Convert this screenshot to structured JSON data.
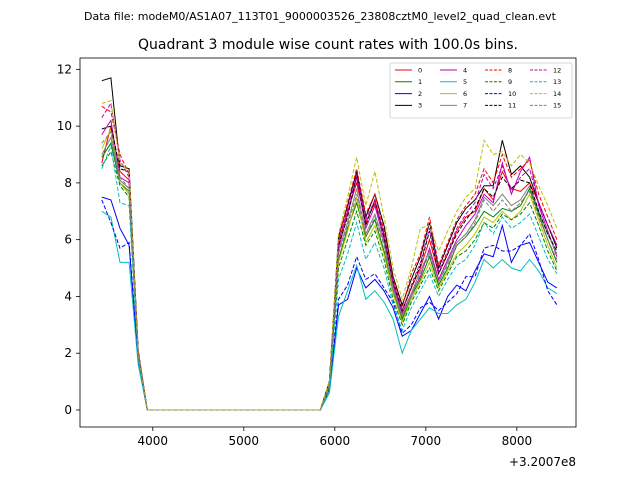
{
  "suptitle": "Data file: modeM0/AS1A07_113T01_9000003526_23808cztM0_level2_quad_clean.evt",
  "chart_data": {
    "type": "line",
    "title": "Quadrant 3 module wise count rates with 100.0s bins.",
    "xlabel": "",
    "ylabel": "",
    "x_offset_label": "+3.2007e8",
    "xlim": [
      3200,
      8650
    ],
    "ylim": [
      -0.6,
      12.4
    ],
    "xticks": [
      4000,
      5000,
      6000,
      7000,
      8000
    ],
    "yticks": [
      0,
      2,
      4,
      6,
      8,
      10,
      12
    ],
    "grid": false,
    "legend": {
      "placement": "top-right",
      "ncol": 4
    },
    "x": [
      3440,
      3540,
      3640,
      3740,
      3840,
      3940,
      4040,
      4140,
      4240,
      4340,
      4440,
      4540,
      4640,
      4740,
      4840,
      4940,
      5040,
      5140,
      5240,
      5340,
      5440,
      5540,
      5640,
      5740,
      5840,
      5940,
      6040,
      6140,
      6240,
      6340,
      6440,
      6540,
      6640,
      6740,
      6840,
      6940,
      7040,
      7140,
      7240,
      7340,
      7440,
      7540,
      7640,
      7740,
      7840,
      7940,
      8040,
      8140,
      8240,
      8340,
      8440
    ],
    "series": [
      {
        "name": "0",
        "color": "#ff0000",
        "dash": false,
        "values": [
          8.7,
          10.0,
          8.4,
          8.1,
          2.0,
          0.0,
          0,
          0,
          0,
          0,
          0,
          0,
          0,
          0,
          0,
          0,
          0,
          0,
          0,
          0,
          0,
          0,
          0,
          0,
          0,
          0.9,
          5.9,
          7.0,
          8.0,
          6.6,
          7.3,
          6.2,
          4.5,
          3.5,
          4.3,
          5.0,
          6.0,
          4.8,
          5.5,
          6.3,
          6.8,
          7.0,
          7.8,
          7.4,
          8.4,
          7.8,
          7.7,
          8.0,
          7.3,
          6.5,
          5.8
        ]
      },
      {
        "name": "1",
        "color": "#008000",
        "dash": false,
        "values": [
          8.9,
          9.4,
          8.0,
          7.7,
          1.9,
          0.0,
          0,
          0,
          0,
          0,
          0,
          0,
          0,
          0,
          0,
          0,
          0,
          0,
          0,
          0,
          0,
          0,
          0,
          0,
          0,
          0.8,
          5.3,
          6.4,
          7.3,
          6.1,
          6.7,
          5.6,
          4.2,
          3.2,
          4.0,
          4.6,
          5.4,
          4.4,
          5.0,
          5.8,
          6.1,
          6.5,
          7.0,
          6.8,
          7.1,
          7.0,
          7.2,
          7.8,
          6.9,
          6.0,
          5.2
        ]
      },
      {
        "name": "2",
        "color": "#0000ff",
        "dash": false,
        "values": [
          7.5,
          7.4,
          6.4,
          5.8,
          1.7,
          0.0,
          0,
          0,
          0,
          0,
          0,
          0,
          0,
          0,
          0,
          0,
          0,
          0,
          0,
          0,
          0,
          0,
          0,
          0,
          0,
          0.7,
          3.7,
          3.9,
          5.0,
          4.3,
          4.6,
          4.2,
          3.6,
          2.6,
          2.8,
          3.4,
          4.0,
          3.2,
          4.0,
          4.4,
          4.2,
          4.9,
          5.5,
          5.4,
          6.5,
          5.2,
          5.8,
          5.9,
          5.2,
          4.5,
          4.3
        ]
      },
      {
        "name": "3",
        "color": "#000000",
        "dash": false,
        "values": [
          11.6,
          11.7,
          8.6,
          8.5,
          2.1,
          0.0,
          0,
          0,
          0,
          0,
          0,
          0,
          0,
          0,
          0,
          0,
          0,
          0,
          0,
          0,
          0,
          0,
          0,
          0,
          0,
          1.0,
          6.1,
          7.2,
          8.4,
          6.8,
          7.6,
          6.5,
          4.7,
          3.7,
          4.6,
          5.4,
          6.6,
          5.0,
          5.8,
          6.6,
          7.1,
          7.4,
          7.9,
          7.9,
          9.5,
          8.3,
          8.6,
          8.2,
          7.3,
          6.5,
          5.7
        ]
      },
      {
        "name": "4",
        "color": "#bf00bf",
        "dash": false,
        "values": [
          9.7,
          10.2,
          8.2,
          8.0,
          1.9,
          0.0,
          0,
          0,
          0,
          0,
          0,
          0,
          0,
          0,
          0,
          0,
          0,
          0,
          0,
          0,
          0,
          0,
          0,
          0,
          0,
          0.9,
          5.7,
          6.9,
          8.2,
          6.4,
          7.2,
          6.0,
          4.4,
          3.4,
          4.1,
          4.7,
          5.7,
          4.6,
          5.3,
          6.0,
          6.5,
          6.9,
          7.6,
          7.3,
          8.7,
          7.6,
          8.4,
          8.9,
          7.2,
          6.3,
          5.4
        ]
      },
      {
        "name": "5",
        "color": "#00bfbf",
        "dash": false,
        "values": [
          7.0,
          6.8,
          5.2,
          5.2,
          1.6,
          0.0,
          0,
          0,
          0,
          0,
          0,
          0,
          0,
          0,
          0,
          0,
          0,
          0,
          0,
          0,
          0,
          0,
          0,
          0,
          0,
          0.6,
          3.3,
          4.2,
          5.1,
          3.9,
          4.2,
          3.8,
          3.2,
          2.0,
          2.8,
          3.2,
          3.6,
          3.4,
          3.4,
          3.7,
          3.9,
          4.5,
          5.3,
          5.0,
          5.3,
          5.0,
          4.9,
          5.3,
          4.9,
          4.3,
          4.1
        ]
      },
      {
        "name": "6",
        "color": "#bfbf00",
        "dash": false,
        "values": [
          9.2,
          9.9,
          8.0,
          7.6,
          1.9,
          0.0,
          0,
          0,
          0,
          0,
          0,
          0,
          0,
          0,
          0,
          0,
          0,
          0,
          0,
          0,
          0,
          0,
          0,
          0,
          0,
          0.8,
          5.2,
          6.3,
          7.5,
          5.9,
          6.5,
          5.5,
          4.1,
          3.1,
          3.9,
          4.5,
          5.2,
          4.3,
          4.9,
          5.5,
          5.8,
          6.2,
          6.8,
          6.6,
          7.0,
          6.7,
          7.0,
          7.6,
          6.7,
          5.8,
          5.0
        ]
      },
      {
        "name": "7",
        "color": "#808080",
        "dash": false,
        "values": [
          9.0,
          9.6,
          8.1,
          7.8,
          1.9,
          0.0,
          0,
          0,
          0,
          0,
          0,
          0,
          0,
          0,
          0,
          0,
          0,
          0,
          0,
          0,
          0,
          0,
          0,
          0,
          0,
          0.9,
          5.6,
          6.6,
          7.8,
          6.2,
          6.9,
          5.9,
          4.3,
          3.3,
          4.1,
          4.9,
          5.6,
          4.5,
          5.2,
          5.9,
          6.2,
          6.7,
          7.5,
          7.2,
          7.6,
          7.2,
          7.4,
          7.9,
          7.0,
          6.2,
          5.5
        ]
      },
      {
        "name": "8",
        "color": "#ff0000",
        "dash": true,
        "values": [
          10.7,
          10.5,
          9.0,
          8.3,
          2.0,
          0.0,
          0,
          0,
          0,
          0,
          0,
          0,
          0,
          0,
          0,
          0,
          0,
          0,
          0,
          0,
          0,
          0,
          0,
          0,
          0,
          1.0,
          6.0,
          7.3,
          8.5,
          6.9,
          7.6,
          6.3,
          4.6,
          3.6,
          4.8,
          5.5,
          6.8,
          5.1,
          5.9,
          6.7,
          7.2,
          7.6,
          8.5,
          8.0,
          9.0,
          8.2,
          8.5,
          8.8,
          7.6,
          6.8,
          6.0
        ]
      },
      {
        "name": "9",
        "color": "#008000",
        "dash": true,
        "values": [
          8.6,
          9.1,
          7.9,
          7.5,
          1.9,
          0.0,
          0,
          0,
          0,
          0,
          0,
          0,
          0,
          0,
          0,
          0,
          0,
          0,
          0,
          0,
          0,
          0,
          0,
          0,
          0,
          0.8,
          5.0,
          6.0,
          7.0,
          5.8,
          6.3,
          5.3,
          3.9,
          3.0,
          3.8,
          4.4,
          5.0,
          4.2,
          4.8,
          5.4,
          5.6,
          6.0,
          6.6,
          6.4,
          6.9,
          6.7,
          6.9,
          7.3,
          6.5,
          5.6,
          4.9
        ]
      },
      {
        "name": "10",
        "color": "#0000ff",
        "dash": true,
        "values": [
          7.4,
          6.6,
          5.7,
          5.9,
          1.8,
          0.0,
          0,
          0,
          0,
          0,
          0,
          0,
          0,
          0,
          0,
          0,
          0,
          0,
          0,
          0,
          0,
          0,
          0,
          0,
          0,
          0.7,
          3.9,
          4.4,
          5.4,
          4.6,
          4.8,
          4.3,
          3.8,
          2.7,
          3.0,
          3.6,
          3.8,
          3.5,
          3.8,
          4.1,
          4.7,
          4.7,
          5.7,
          5.8,
          5.6,
          5.6,
          5.8,
          6.2,
          5.3,
          4.2,
          3.7
        ]
      },
      {
        "name": "11",
        "color": "#000000",
        "dash": true,
        "values": [
          9.9,
          10.0,
          8.5,
          8.4,
          2.0,
          0.0,
          0,
          0,
          0,
          0,
          0,
          0,
          0,
          0,
          0,
          0,
          0,
          0,
          0,
          0,
          0,
          0,
          0,
          0,
          0,
          1.0,
          5.8,
          6.8,
          8.3,
          6.5,
          7.4,
          6.1,
          4.5,
          3.5,
          4.3,
          5.1,
          6.3,
          4.8,
          5.5,
          6.2,
          6.7,
          7.1,
          7.8,
          7.5,
          8.2,
          7.8,
          8.1,
          8.0,
          7.0,
          6.2,
          5.6
        ]
      },
      {
        "name": "12",
        "color": "#bf00bf",
        "dash": true,
        "values": [
          10.3,
          10.8,
          8.8,
          8.2,
          2.0,
          0.0,
          0,
          0,
          0,
          0,
          0,
          0,
          0,
          0,
          0,
          0,
          0,
          0,
          0,
          0,
          0,
          0,
          0,
          0,
          0,
          0.9,
          5.9,
          7.1,
          8.3,
          6.7,
          7.4,
          6.2,
          4.5,
          3.5,
          4.4,
          5.2,
          6.4,
          4.9,
          5.6,
          6.4,
          6.9,
          7.3,
          8.3,
          7.8,
          8.6,
          7.7,
          8.2,
          8.5,
          7.3,
          6.5,
          5.8
        ]
      },
      {
        "name": "13",
        "color": "#00bfbf",
        "dash": true,
        "values": [
          8.5,
          9.3,
          7.3,
          7.2,
          1.8,
          0.0,
          0,
          0,
          0,
          0,
          0,
          0,
          0,
          0,
          0,
          0,
          0,
          0,
          0,
          0,
          0,
          0,
          0,
          0,
          0,
          0.7,
          4.6,
          5.5,
          6.6,
          5.3,
          5.9,
          5.0,
          3.7,
          2.8,
          3.6,
          4.2,
          4.8,
          4.0,
          4.6,
          5.1,
          5.3,
          5.8,
          6.6,
          6.2,
          6.8,
          6.4,
          6.6,
          6.9,
          6.1,
          5.3,
          4.8
        ]
      },
      {
        "name": "14",
        "color": "#bfbf00",
        "dash": true,
        "values": [
          10.8,
          10.9,
          8.7,
          8.4,
          2.0,
          0.0,
          0,
          0,
          0,
          0,
          0,
          0,
          0,
          0,
          0,
          0,
          0,
          0,
          0,
          0,
          0,
          0,
          0,
          0,
          0,
          1.0,
          6.2,
          7.5,
          8.9,
          7.2,
          8.4,
          6.8,
          5.0,
          3.9,
          5.0,
          6.4,
          6.5,
          5.6,
          6.3,
          7.0,
          7.5,
          7.8,
          9.5,
          9.0,
          9.1,
          8.6,
          9.0,
          8.7,
          7.9,
          7.2,
          6.4
        ]
      },
      {
        "name": "15",
        "color": "#808080",
        "dash": true,
        "values": [
          9.4,
          9.8,
          8.2,
          7.8,
          1.9,
          0.0,
          0,
          0,
          0,
          0,
          0,
          0,
          0,
          0,
          0,
          0,
          0,
          0,
          0,
          0,
          0,
          0,
          0,
          0,
          0,
          0.9,
          5.5,
          6.5,
          7.6,
          6.1,
          6.8,
          5.8,
          4.2,
          3.3,
          4.0,
          4.8,
          5.5,
          4.5,
          5.1,
          5.8,
          6.1,
          6.6,
          7.4,
          7.0,
          7.4,
          7.0,
          7.3,
          7.7,
          6.8,
          6.0,
          5.3
        ]
      }
    ]
  }
}
